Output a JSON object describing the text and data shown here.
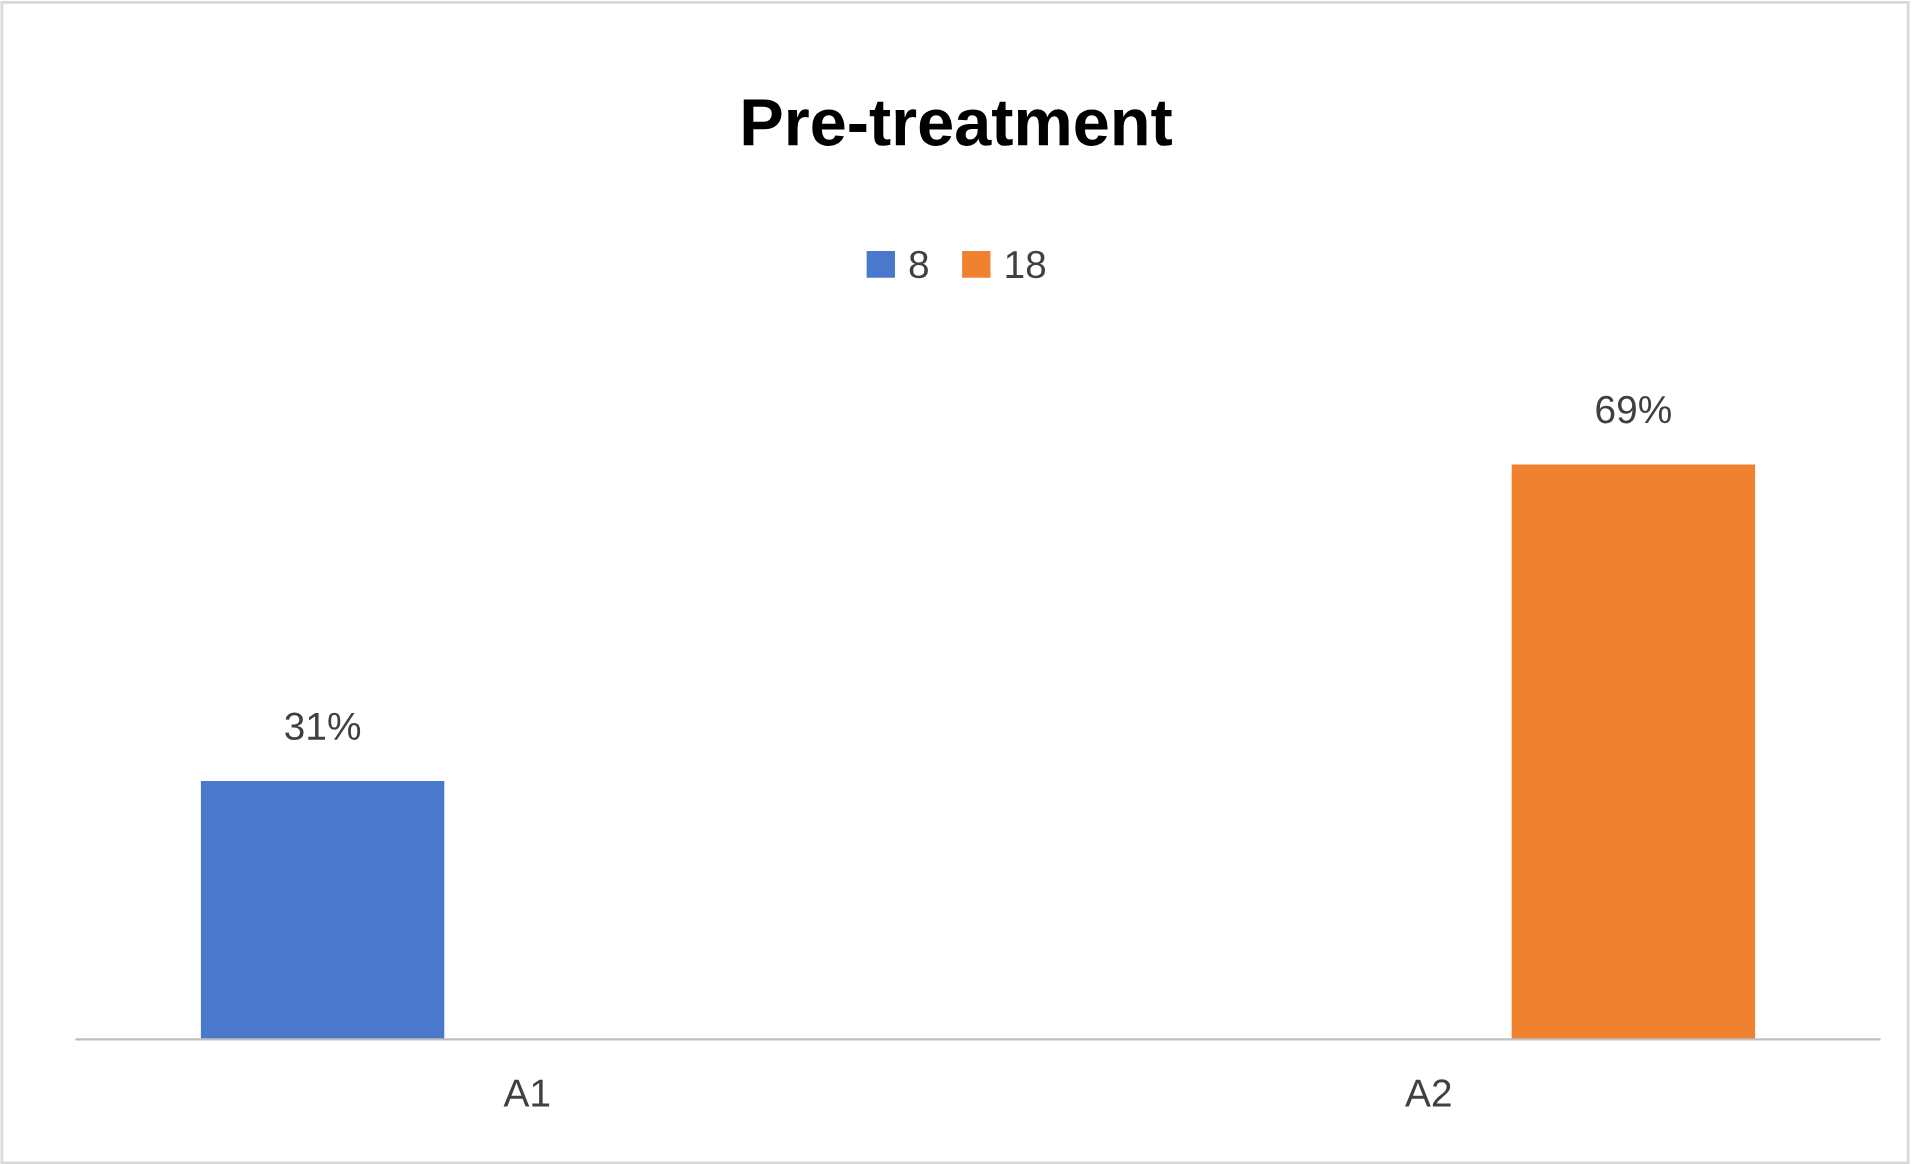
{
  "chart_data": {
    "type": "bar",
    "title": "Pre-treatment",
    "categories": [
      "A1",
      "A2"
    ],
    "series": [
      {
        "name": "8",
        "color": "#4a78cc",
        "values": [
          31,
          null
        ],
        "value_labels": [
          "31%",
          null
        ]
      },
      {
        "name": "18",
        "color": "#f0812f",
        "values": [
          null,
          69
        ],
        "value_labels": [
          null,
          "69%"
        ]
      }
    ],
    "legend": "top",
    "grid": false
  }
}
